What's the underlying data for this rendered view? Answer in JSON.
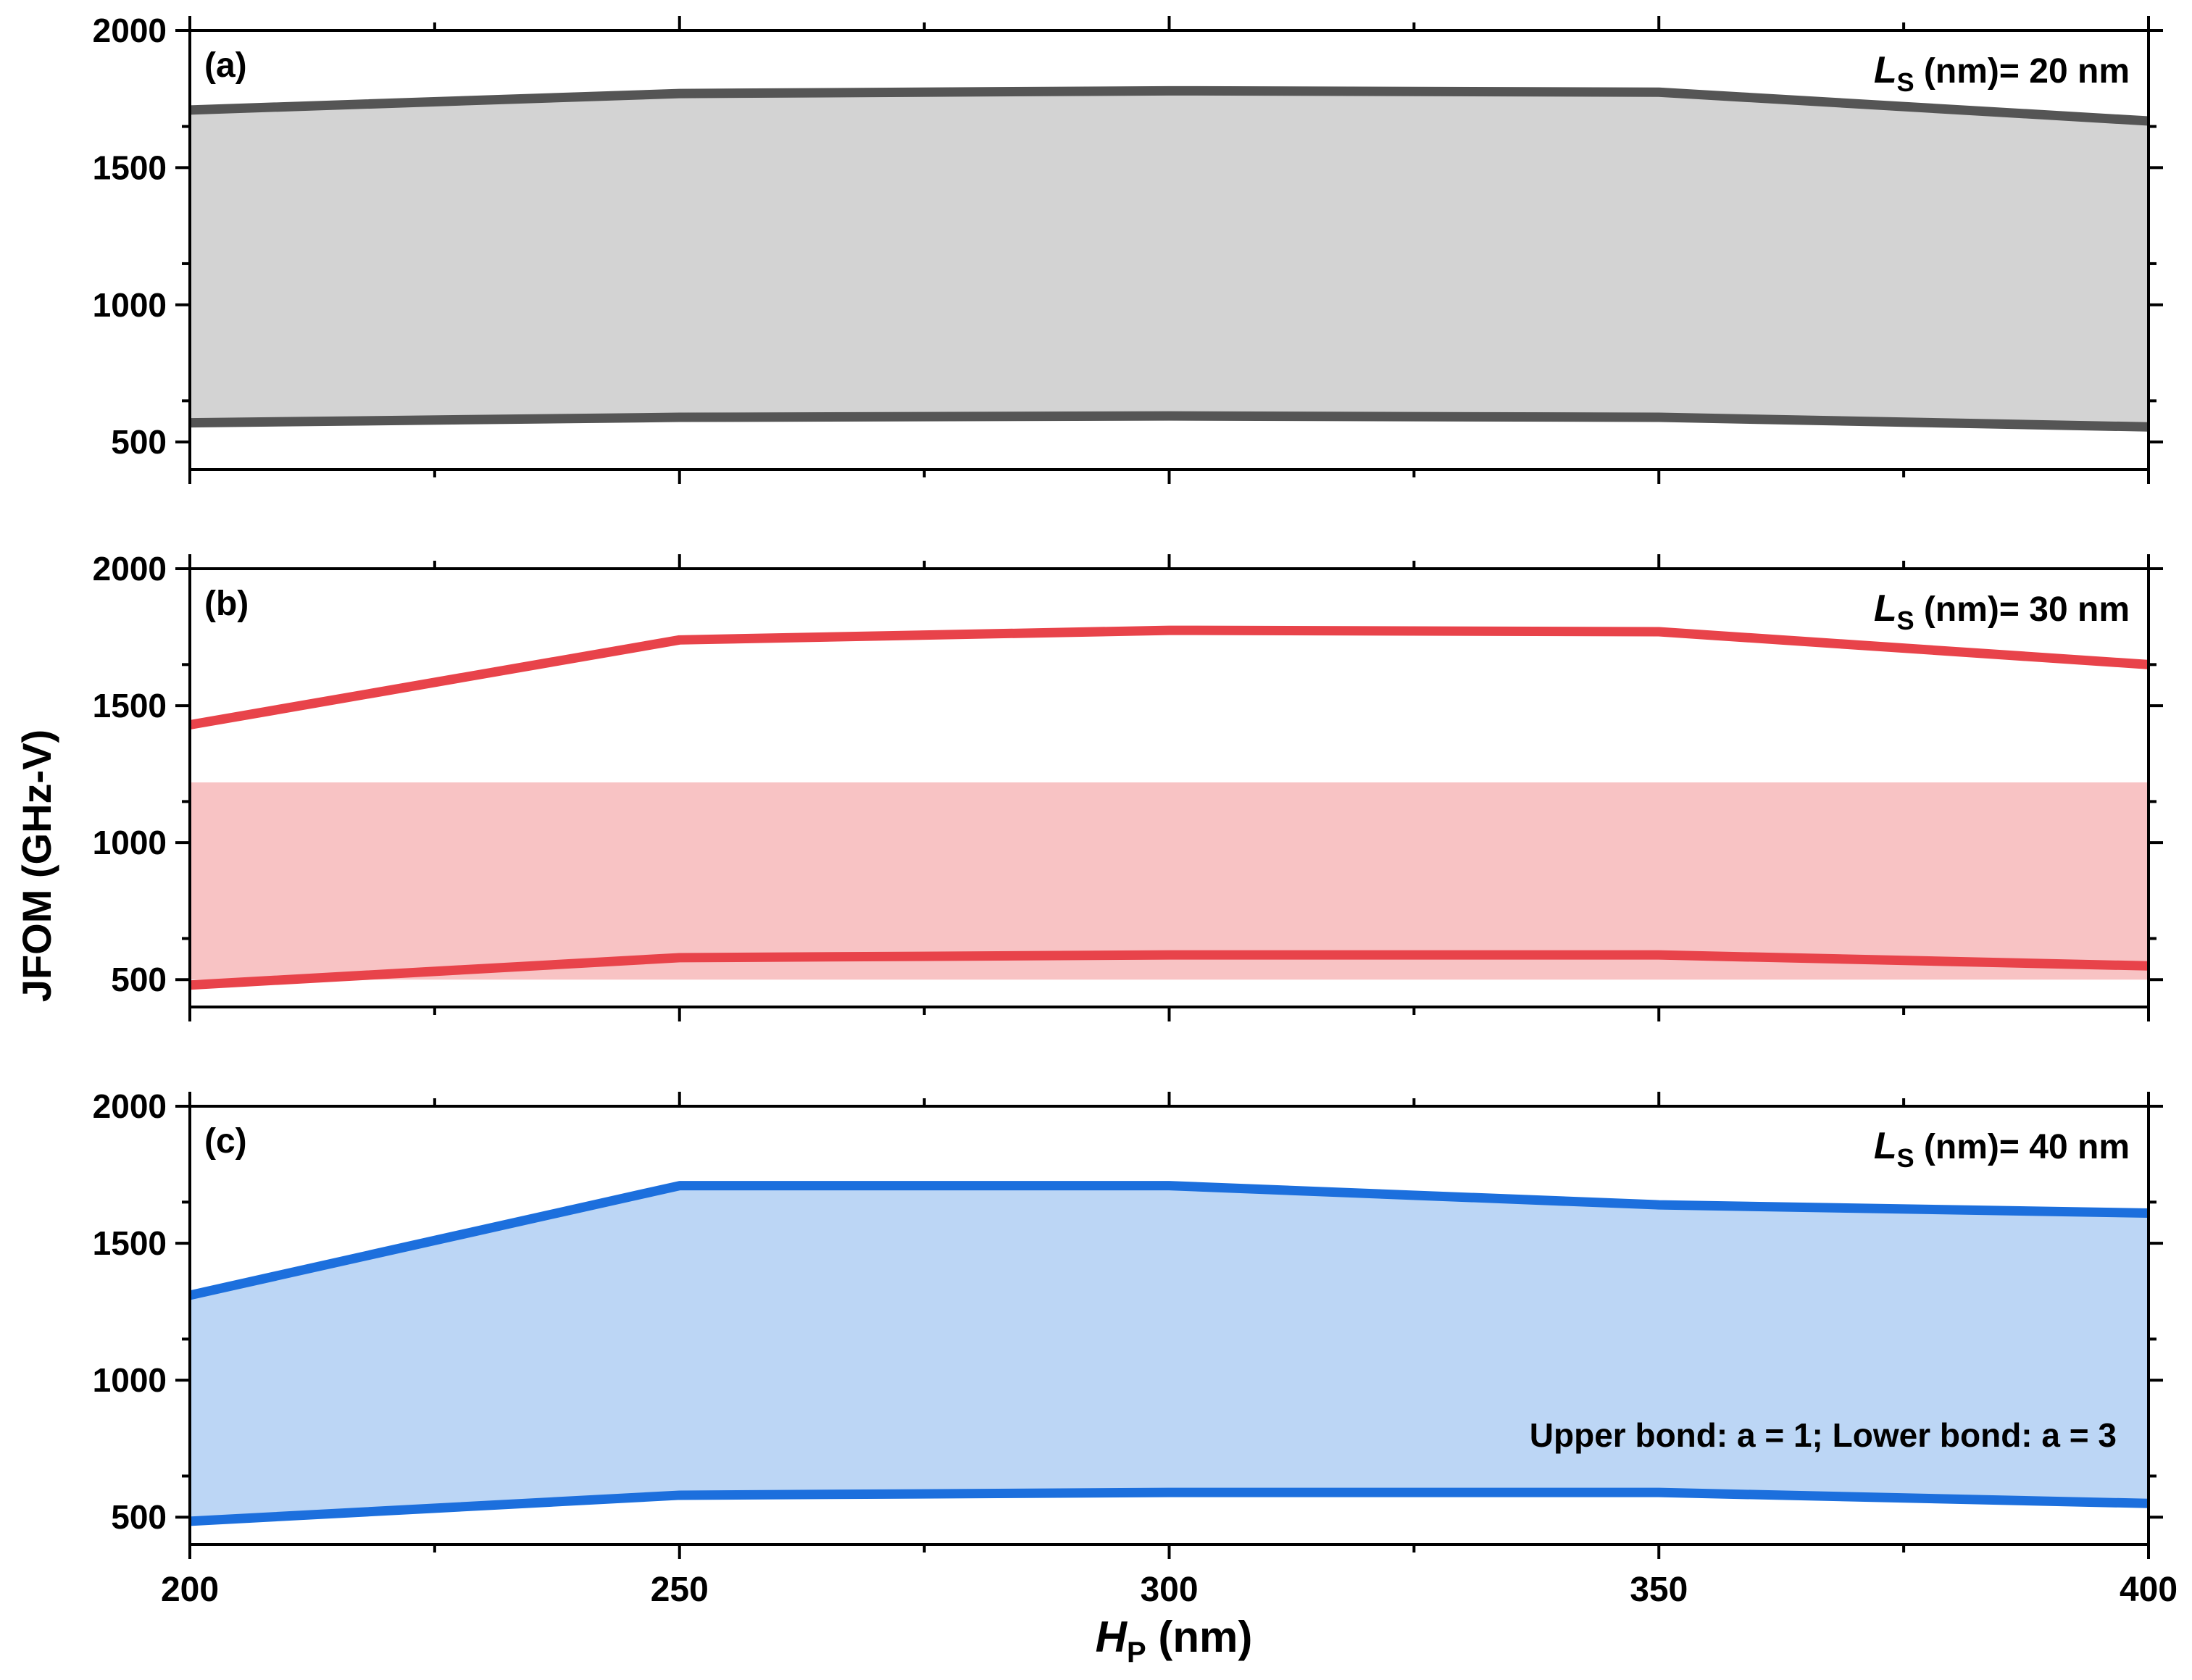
{
  "figure": {
    "ylabel": "JFOM (GHz-V)",
    "xlabel_main": "H",
    "xlabel_sub": "P",
    "xlabel_unit": " (nm)"
  },
  "chart_data": [
    {
      "type": "area",
      "panel_label": "(a)",
      "title_var": "L",
      "title_sub": "S",
      "title_text": " (nm)= 20 nm",
      "x": [
        200,
        250,
        300,
        350,
        400
      ],
      "series": [
        {
          "name": "Upper bond",
          "values": [
            1710,
            1770,
            1780,
            1775,
            1670
          ]
        },
        {
          "name": "Lower bond",
          "values": [
            570,
            590,
            595,
            590,
            555
          ]
        }
      ],
      "shaded_region": {
        "from_series": "Lower bond",
        "to_series": "Upper bond"
      },
      "xlim": [
        200,
        400
      ],
      "ylim": [
        400,
        2000
      ],
      "yticks": [
        500,
        1000,
        1500,
        2000
      ],
      "xticks": [
        200,
        250,
        300,
        350,
        400
      ],
      "line_color": "#555555",
      "fill_color": "#d3d3d3"
    },
    {
      "type": "area",
      "panel_label": "(b)",
      "title_var": "L",
      "title_sub": "S",
      "title_text": " (nm)= 30 nm",
      "x": [
        200,
        250,
        300,
        350,
        400
      ],
      "series": [
        {
          "name": "Upper bond",
          "values": [
            1430,
            1740,
            1775,
            1770,
            1650
          ]
        },
        {
          "name": "Lower bond",
          "values": [
            480,
            580,
            590,
            590,
            550
          ]
        }
      ],
      "shaded_region": {
        "y_from": 500,
        "y_to": 1220
      },
      "xlim": [
        200,
        400
      ],
      "ylim": [
        400,
        2000
      ],
      "yticks": [
        500,
        1000,
        1500,
        2000
      ],
      "xticks": [
        200,
        250,
        300,
        350,
        400
      ],
      "line_color": "#e8434a",
      "fill_color": "#f8c3c4"
    },
    {
      "type": "area",
      "panel_label": "(c)",
      "title_var": "L",
      "title_sub": "S",
      "title_text": " (nm)= 40 nm",
      "annotation": "Upper bond: a = 1; Lower bond: a = 3",
      "x": [
        200,
        250,
        300,
        350,
        400
      ],
      "series": [
        {
          "name": "Upper bond",
          "values": [
            1310,
            1710,
            1710,
            1640,
            1610
          ]
        },
        {
          "name": "Lower bond",
          "values": [
            485,
            580,
            590,
            590,
            550
          ]
        }
      ],
      "shaded_region": {
        "from_series": "Lower bond",
        "to_series": "Upper bond"
      },
      "xlim": [
        200,
        400
      ],
      "ylim": [
        400,
        2000
      ],
      "yticks": [
        500,
        1000,
        1500,
        2000
      ],
      "xticks": [
        200,
        250,
        300,
        350,
        400
      ],
      "line_color": "#1c6fdd",
      "fill_color": "#bcd6f5"
    }
  ]
}
